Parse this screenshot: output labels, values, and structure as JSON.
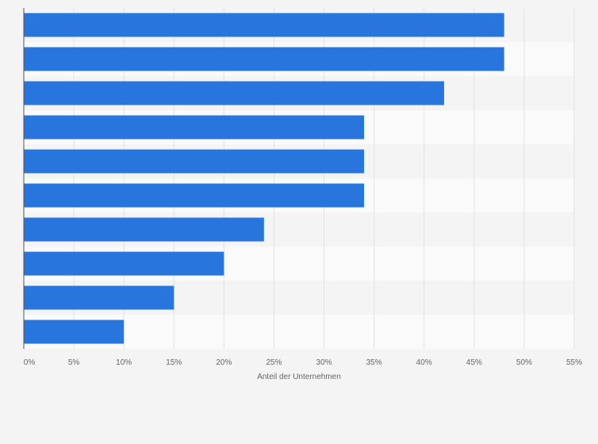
{
  "chart_data": {
    "type": "bar",
    "orientation": "horizontal",
    "categories": [
      "",
      "",
      "",
      "",
      "",
      "",
      "",
      "",
      "",
      ""
    ],
    "values": [
      48,
      48,
      42,
      34,
      34,
      34,
      24,
      20,
      15,
      10
    ],
    "xlabel": "Anteil der Unternehmen",
    "ylabel": "",
    "xlim": [
      0,
      55
    ],
    "x_ticks": [
      "0%",
      "5%",
      "10%",
      "15%",
      "20%",
      "25%",
      "30%",
      "35%",
      "40%",
      "45%",
      "50%",
      "55%"
    ],
    "grid": "vertical",
    "bar_color": "#2876dd",
    "background_color": "#f4f4f4",
    "band_colors": [
      "#f4f4f4",
      "#fafafa"
    ]
  }
}
